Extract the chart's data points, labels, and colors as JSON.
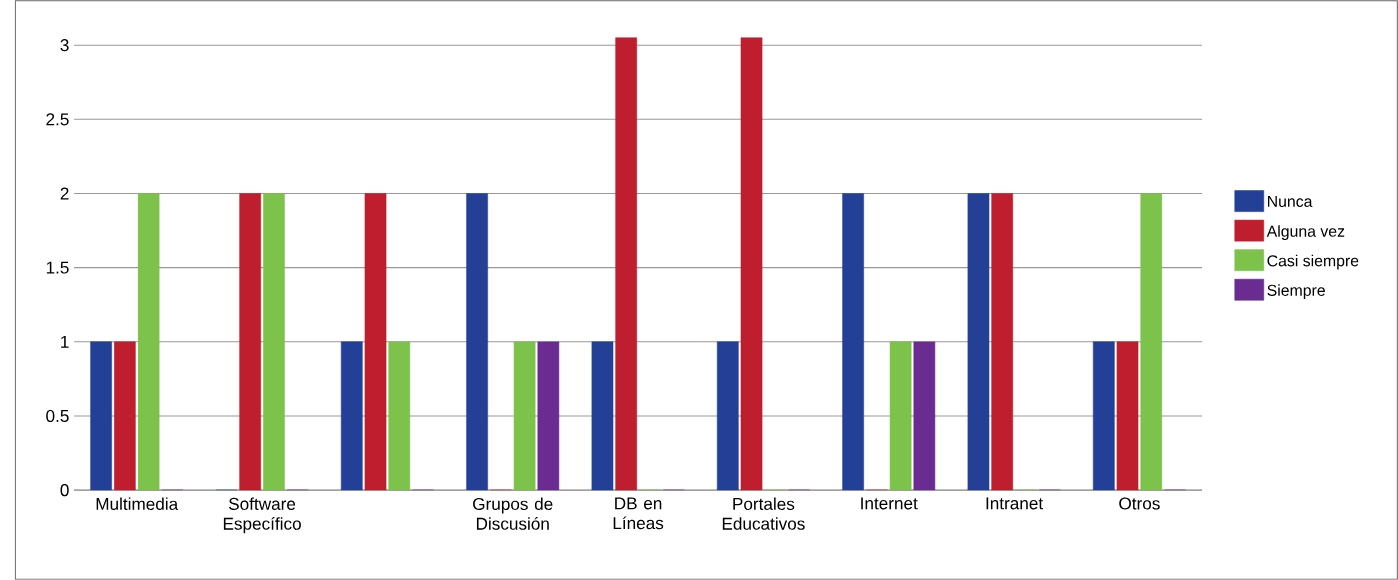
{
  "chart_data": {
    "type": "bar",
    "categories": [
      "Multimedia",
      "Software Específico",
      null,
      "Grupos de Discusión",
      "DB en Líneas",
      "Portales Educativos",
      "Internet",
      "Intranet",
      "Otros"
    ],
    "series": [
      {
        "name": "Nunca",
        "color": "#233f96",
        "values": [
          1,
          0,
          1,
          2,
          1,
          1,
          2,
          2,
          1
        ]
      },
      {
        "name": "Alguna vez",
        "color": "#be1e2d",
        "values": [
          1,
          2,
          2,
          0,
          3.05,
          3.05,
          0,
          2,
          1
        ]
      },
      {
        "name": "Casi siempre",
        "color": "#7dc24b",
        "values": [
          2,
          2,
          1,
          1,
          0,
          0,
          1,
          0,
          2
        ]
      },
      {
        "name": "Siempre",
        "color": "#6a2c91",
        "values": [
          0,
          0,
          0,
          1,
          0,
          0,
          1,
          0,
          0
        ]
      }
    ],
    "ylim": [
      0,
      3.3
    ],
    "yticks": [
      0,
      0.5,
      1,
      1.5,
      2,
      2.5,
      3
    ],
    "grid": "y",
    "legend": "right"
  }
}
